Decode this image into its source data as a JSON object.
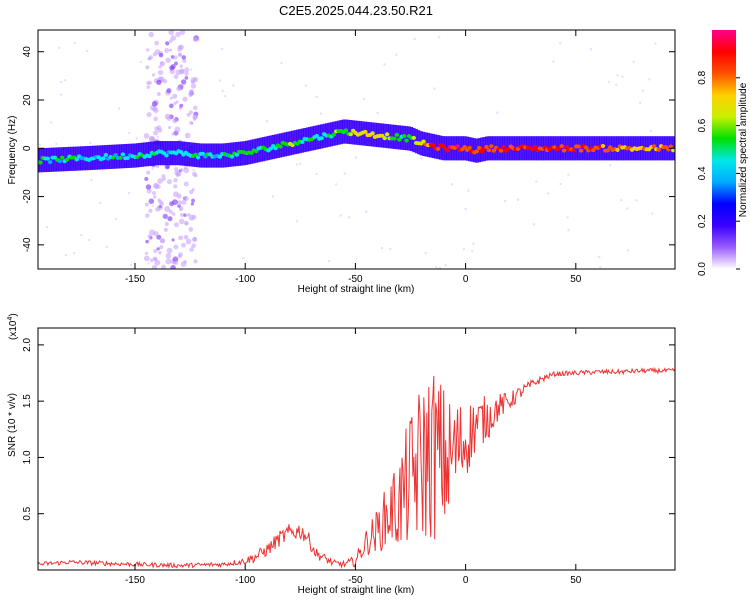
{
  "title": "C2E5.2025.044.23.50.R21",
  "chart_data": [
    {
      "type": "heatmap",
      "xlabel": "Height of straight line (km)",
      "ylabel": "Frequency (Hz)",
      "xlim": [
        -194,
        95
      ],
      "ylim": [
        -50,
        49
      ],
      "xticks": [
        -150,
        -100,
        -50,
        0,
        50
      ],
      "xtick_labels": [
        "-150",
        "-100",
        "-50",
        "0",
        "50"
      ],
      "yticks": [
        -40,
        -20,
        0,
        20,
        40
      ],
      "ytick_labels": [
        "-40",
        "-20",
        "0",
        "20",
        "40"
      ],
      "colorbar": {
        "label": "Normalized spectral amplitude",
        "range": [
          0,
          1
        ],
        "ticks": [
          0.0,
          0.2,
          0.4,
          0.6,
          0.8
        ],
        "tick_labels": [
          "0.0",
          "0.2",
          "0.4",
          "0.6",
          "0.8"
        ],
        "colors": [
          "#ffffff",
          "#9a5cff",
          "#3a00ff",
          "#0000ff",
          "#00aaff",
          "#00e8e8",
          "#00e000",
          "#c8f000",
          "#ffd000",
          "#ff5000",
          "#ff0000",
          "#ff0090"
        ]
      },
      "ridge": {
        "x": [
          -194,
          -170,
          -150,
          -140,
          -130,
          -120,
          -110,
          -100,
          -90,
          -80,
          -70,
          -60,
          -55,
          -45,
          -35,
          -25,
          -20,
          -15,
          -10,
          -5,
          0,
          5,
          10,
          20,
          50,
          95
        ],
        "frequency": [
          -5,
          -4,
          -3,
          -2,
          -2,
          -3,
          -3,
          -2,
          0,
          2,
          4,
          6,
          7,
          6,
          5,
          4,
          2,
          1,
          0,
          0,
          0,
          -1,
          0,
          0,
          0,
          0
        ],
        "amplitude": [
          0.45,
          0.45,
          0.45,
          0.45,
          0.45,
          0.45,
          0.45,
          0.5,
          0.5,
          0.55,
          0.5,
          0.5,
          0.6,
          0.75,
          0.6,
          0.5,
          0.7,
          0.85,
          0.9,
          0.9,
          0.85,
          0.8,
          0.85,
          0.9,
          0.85,
          0.75
        ]
      },
      "scatter_band": {
        "x_range": [
          -145,
          -122
        ],
        "frequency_range": [
          -50,
          49
        ]
      }
    },
    {
      "type": "line",
      "title_multiplier": "(x10",
      "title_exponent": "4",
      "title_close": ")",
      "xlabel": "Height of straight line (km)",
      "ylabel": "SNR (10 * v/v)",
      "xlim": [
        -194,
        95
      ],
      "ylim": [
        0,
        2.15
      ],
      "xticks": [
        -150,
        -100,
        -50,
        0,
        50
      ],
      "xtick_labels": [
        "-150",
        "-100",
        "-50",
        "0",
        "50"
      ],
      "yticks": [
        0.5,
        1.0,
        1.5,
        2.0
      ],
      "ytick_labels": [
        "0.5",
        "1.0",
        "1.5",
        "2.0"
      ],
      "color": "#ee3333",
      "series": [
        {
          "name": "SNR",
          "x": [
            -194,
            -180,
            -165,
            -150,
            -130,
            -110,
            -100,
            -95,
            -90,
            -85,
            -80,
            -75,
            -72,
            -68,
            -60,
            -55,
            -50,
            -45,
            -40,
            -35,
            -30,
            -25,
            -20,
            -15,
            -12,
            -8,
            -5,
            0,
            5,
            10,
            15,
            20,
            25,
            30,
            35,
            40,
            50,
            60,
            70,
            80,
            90,
            95
          ],
          "y": [
            0.05,
            0.07,
            0.06,
            0.05,
            0.04,
            0.05,
            0.08,
            0.12,
            0.18,
            0.27,
            0.33,
            0.35,
            0.3,
            0.15,
            0.06,
            0.05,
            0.08,
            0.25,
            0.35,
            0.5,
            0.6,
            0.8,
            0.95,
            1.05,
            1.0,
            0.95,
            1.05,
            1.15,
            1.3,
            1.35,
            1.45,
            1.5,
            1.58,
            1.65,
            1.7,
            1.74,
            1.75,
            1.76,
            1.76,
            1.77,
            1.77,
            1.77
          ],
          "noise": [
            0.02,
            0.02,
            0.02,
            0.02,
            0.02,
            0.02,
            0.03,
            0.05,
            0.06,
            0.07,
            0.08,
            0.08,
            0.07,
            0.05,
            0.03,
            0.03,
            0.05,
            0.12,
            0.2,
            0.3,
            0.45,
            0.6,
            0.75,
            0.8,
            0.75,
            0.6,
            0.5,
            0.35,
            0.25,
            0.2,
            0.12,
            0.08,
            0.06,
            0.04,
            0.03,
            0.02,
            0.02,
            0.02,
            0.02,
            0.02,
            0.02,
            0.02
          ]
        }
      ]
    }
  ]
}
